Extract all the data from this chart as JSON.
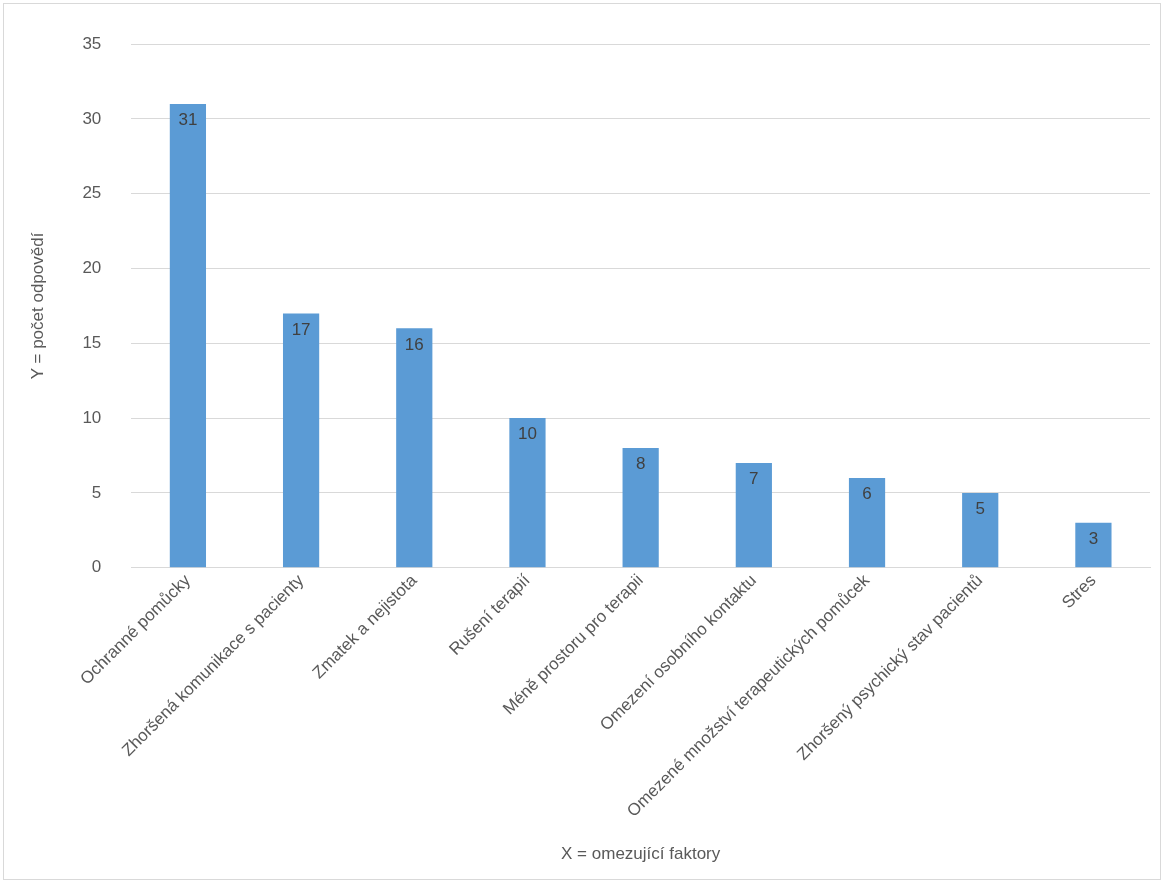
{
  "chart_data": {
    "type": "bar",
    "xlabel": "X = omezující faktory",
    "ylabel": "Y = počet odpovědí",
    "categories": [
      "Ochranné pomůcky",
      "Zhoršená komunikace s pacienty",
      "Zmatek a nejistota",
      "Rušení terapií",
      "Méně prostoru pro terapii",
      "Omezení osobního kontaktu",
      "Omezené množství terapeutických pomůcek",
      "Zhoršený psychický stav pacientů",
      "Stres"
    ],
    "values": [
      31,
      17,
      16,
      10,
      8,
      7,
      6,
      5,
      3
    ],
    "color": "#5b9bd5",
    "ylim": [
      0,
      35
    ],
    "yticks": [
      0,
      5,
      10,
      15,
      20,
      25,
      30,
      35
    ],
    "grid": "y",
    "data_labels": true,
    "legend": false
  }
}
